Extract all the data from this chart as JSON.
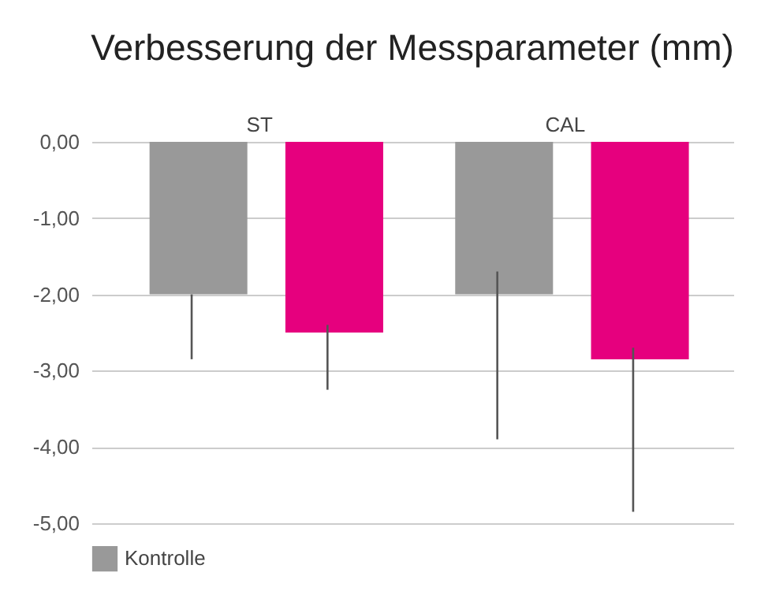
{
  "chart_data": {
    "type": "bar",
    "title": "Verbesserung der Messparameter (mm)",
    "categories": [
      "ST",
      "CAL"
    ],
    "series": [
      {
        "name": "Kontrolle",
        "color": "#999999",
        "values": [
          -2.0,
          -2.0
        ],
        "errors": [
          [
            -2.85,
            -2.0
          ],
          [
            -3.9,
            -1.7
          ]
        ]
      },
      {
        "color": "#e6007e",
        "values": [
          -2.5,
          -2.85
        ],
        "errors": [
          [
            -3.25,
            -2.4
          ],
          [
            -4.85,
            -2.7
          ]
        ]
      }
    ],
    "ylim": [
      -5,
      0
    ],
    "yticks": [
      {
        "value": 0,
        "label": "0,00"
      },
      {
        "value": -1,
        "label": "-1,00"
      },
      {
        "value": -2,
        "label": "-2,00"
      },
      {
        "value": -3,
        "label": "-3,00"
      },
      {
        "value": -4,
        "label": "-4,00"
      },
      {
        "value": -5,
        "label": "-5,00"
      }
    ],
    "grid": "y",
    "legend": "bottom"
  }
}
